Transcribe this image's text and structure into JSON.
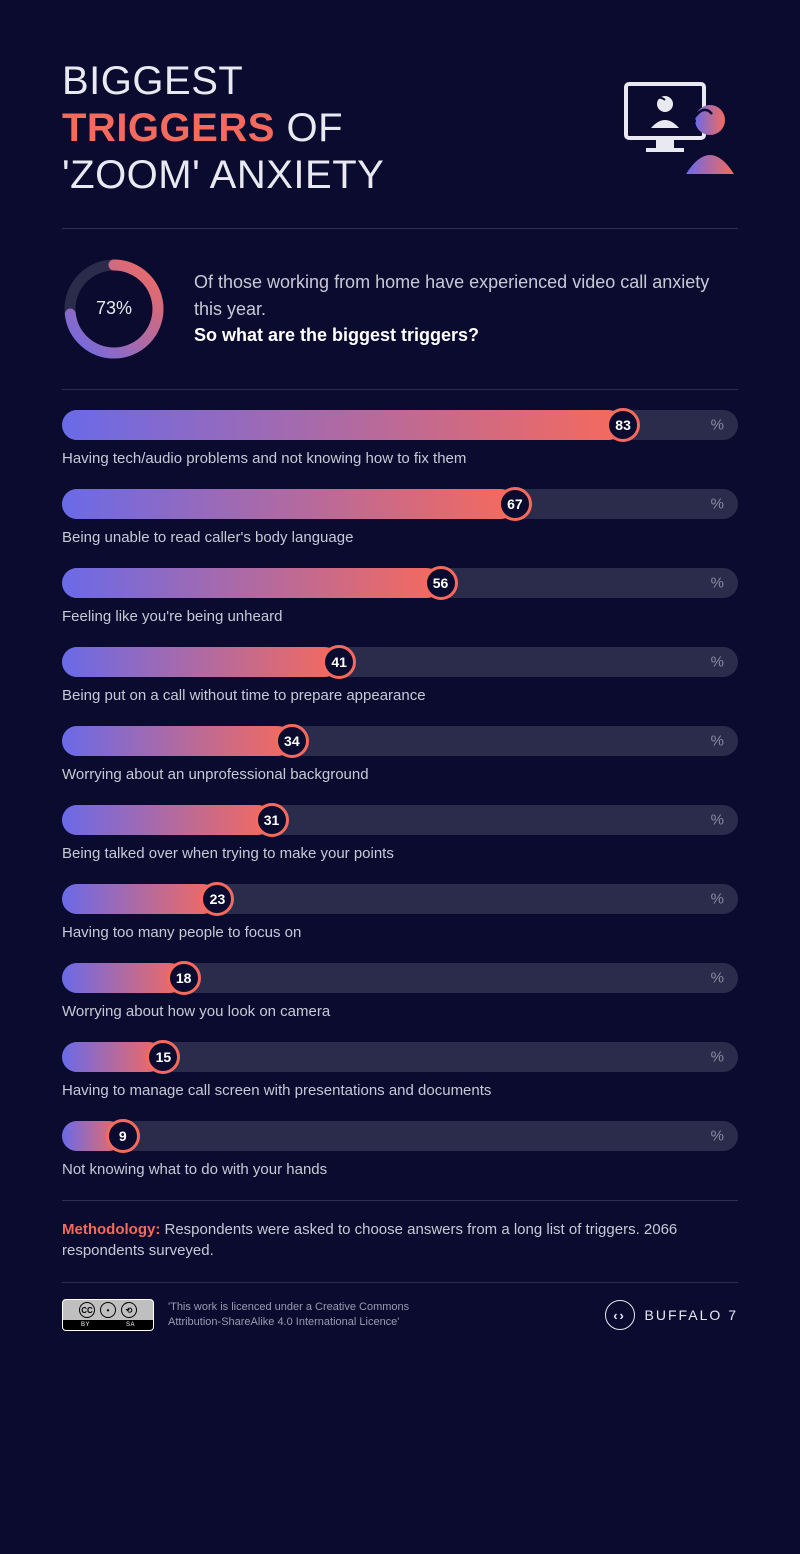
{
  "colors": {
    "background": "#0a0b2e",
    "text_muted": "#c9c9d6",
    "text_light": "#e9e9f2",
    "accent": "#f56a5d",
    "divider": "#2e2f55",
    "bar_track": "#2b2c4b",
    "gradient_start": "#6a6ae8",
    "gradient_end": "#f56a5d",
    "knob_bg": "#0a0b2e",
    "knob_border": "#f56a5d",
    "pct_color": "#8a8aa0"
  },
  "title": {
    "line1_pre": "BIGGEST",
    "accent": "TRIGGERS",
    "line2_post": "OF",
    "line3": "'ZOOM' ANXIETY"
  },
  "donut": {
    "value": 73,
    "label": "73%",
    "track_color": "#2b2c4b",
    "arc_gradient_start": "#6a6ae8",
    "arc_gradient_end": "#f56a5d",
    "stroke_width": 11
  },
  "intro": {
    "text1": "Of those working from home have experienced video call anxiety this year.",
    "text2": "So what are the biggest triggers?"
  },
  "bars": {
    "pct_symbol": "%",
    "track_height": 30,
    "knob_size": 34,
    "gradient_start": "#6a6ae8",
    "gradient_end": "#f56a5d",
    "items": [
      {
        "value": 83,
        "label": "Having tech/audio problems and not knowing how to fix them"
      },
      {
        "value": 67,
        "label": "Being unable to read caller's body language"
      },
      {
        "value": 56,
        "label": "Feeling like you're being unheard"
      },
      {
        "value": 41,
        "label": "Being put on a call without time to prepare appearance"
      },
      {
        "value": 34,
        "label": "Worrying about an unprofessional background"
      },
      {
        "value": 31,
        "label": "Being talked over when trying to make your points"
      },
      {
        "value": 23,
        "label": "Having too many people to focus on"
      },
      {
        "value": 18,
        "label": "Worrying about how you look on camera"
      },
      {
        "value": 15,
        "label": "Having to manage call screen with presentations and documents"
      },
      {
        "value": 9,
        "label": "Not knowing what to do with your hands"
      }
    ]
  },
  "methodology": {
    "heading": "Methodology:",
    "body": "Respondents were asked to choose answers from a long list of triggers. 2066 respondents surveyed."
  },
  "footer": {
    "cc_by": "BY",
    "cc_sa": "SA",
    "license_text": "'This work is licenced under a Creative Commons Attribution-ShareAlike 4.0 International Licence'",
    "brand": "BUFFALO 7",
    "brand_glyph": "‹›"
  }
}
